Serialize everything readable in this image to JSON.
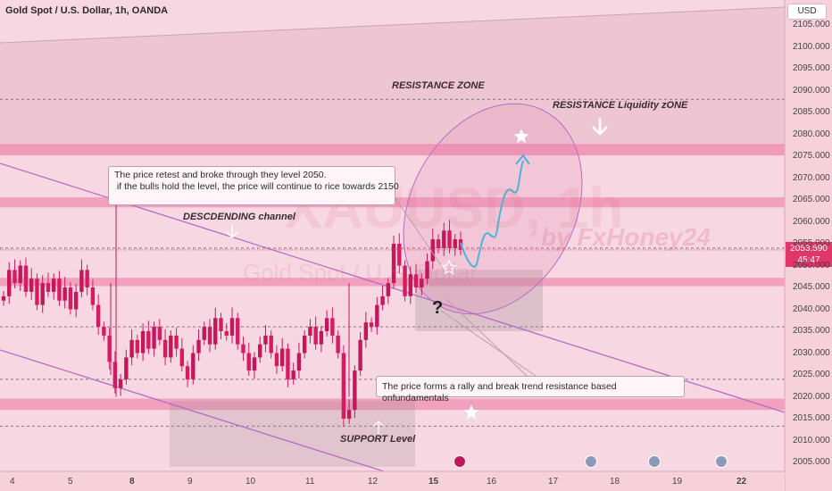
{
  "header": {
    "symbol": "Gold Spot / U.S. Dollar, 1h, OANDA",
    "currency": "USD"
  },
  "price_tag": {
    "price": "2053.590",
    "countdown": "45:47"
  },
  "annotations": {
    "resistance_zone": "RESISTANCE ZONE",
    "resistance_liquidity": "RESISTANCE Liquidity zONE",
    "descending_channel": "DESCDENDING channel",
    "support_level": "SUPPORT Level",
    "question_mark": "?",
    "callout_1_line_1": "The price retest and broke through they  level 2050.",
    "callout_1_line_2": " if the bulls hold the level, the price will continue to rice towards 2150",
    "callout_2": "The price forms a rally and break trend resistance based  onfundamentals"
  },
  "watermark": {
    "ticker": "XAUUSD, 1h",
    "name": "Gold Spot / U.S. Dollar",
    "author": "by FxHoney24"
  },
  "colors": {
    "background": "#f7d7e1",
    "zone_fill": "#ef8fb0",
    "up_candle": "#c2185b",
    "down_candle": "#d81b60",
    "channel_line": "#b46bc4",
    "projection": "#4fb3d9",
    "price_tag": "#e0366a"
  },
  "y_axis": {
    "ticks": [
      "2105.000",
      "2100.000",
      "2095.000",
      "2090.000",
      "2085.000",
      "2080.000",
      "2075.000",
      "2070.000",
      "2065.000",
      "2060.000",
      "2055.000",
      "2050.000",
      "2045.000",
      "2040.000",
      "2035.000",
      "2030.000",
      "2025.000",
      "2020.000",
      "2015.000",
      "2010.000",
      "2005.000"
    ]
  },
  "x_axis": {
    "ticks": [
      "4",
      "5",
      "8",
      "9",
      "10",
      "11",
      "12",
      "15",
      "16",
      "17",
      "18",
      "19",
      "22"
    ],
    "bold_ticks": [
      "8",
      "15",
      "22"
    ]
  },
  "chart_data": {
    "type": "candlestick",
    "symbol": "Gold Spot / U.S. Dollar",
    "timeframe": "1h",
    "ylim": [
      2003,
      2109
    ],
    "last_price": 2053.59,
    "zones": [
      {
        "name": "RESISTANCE ZONE",
        "from": 2075.2,
        "to": 2077.8
      },
      {
        "name": "level",
        "from": 2063.3,
        "to": 2065.6
      },
      {
        "name": "level",
        "from": 2045.3,
        "to": 2047.2
      },
      {
        "name": "SUPPORT Level",
        "from": 2017.0,
        "to": 2019.6
      }
    ],
    "dashed_levels": [
      2088.0,
      2054.0,
      2036.0,
      2024.0,
      2013.3
    ],
    "close_path": [
      2043,
      2049,
      2046,
      2050,
      2044,
      2047,
      2041,
      2046,
      2044,
      2047,
      2042,
      2045,
      2040,
      2044,
      2049,
      2045,
      2041,
      2036,
      2034,
      2028,
      2022,
      2024,
      2029,
      2033,
      2030,
      2035,
      2031,
      2036,
      2033,
      2029,
      2034,
      2031,
      2027,
      2024,
      2030,
      2033,
      2036,
      2032,
      2038,
      2035,
      2034,
      2038,
      2032,
      2030,
      2026,
      2029,
      2032,
      2034,
      2030,
      2027,
      2031,
      2024,
      2026,
      2030,
      2034,
      2036,
      2032,
      2035,
      2038,
      2034,
      2030,
      2015,
      2017,
      2026,
      2033,
      2037,
      2036,
      2041,
      2043,
      2046,
      2055,
      2050,
      2043,
      2048,
      2045,
      2047,
      2051,
      2056,
      2054,
      2058,
      2054,
      2056,
      2053.6
    ]
  }
}
